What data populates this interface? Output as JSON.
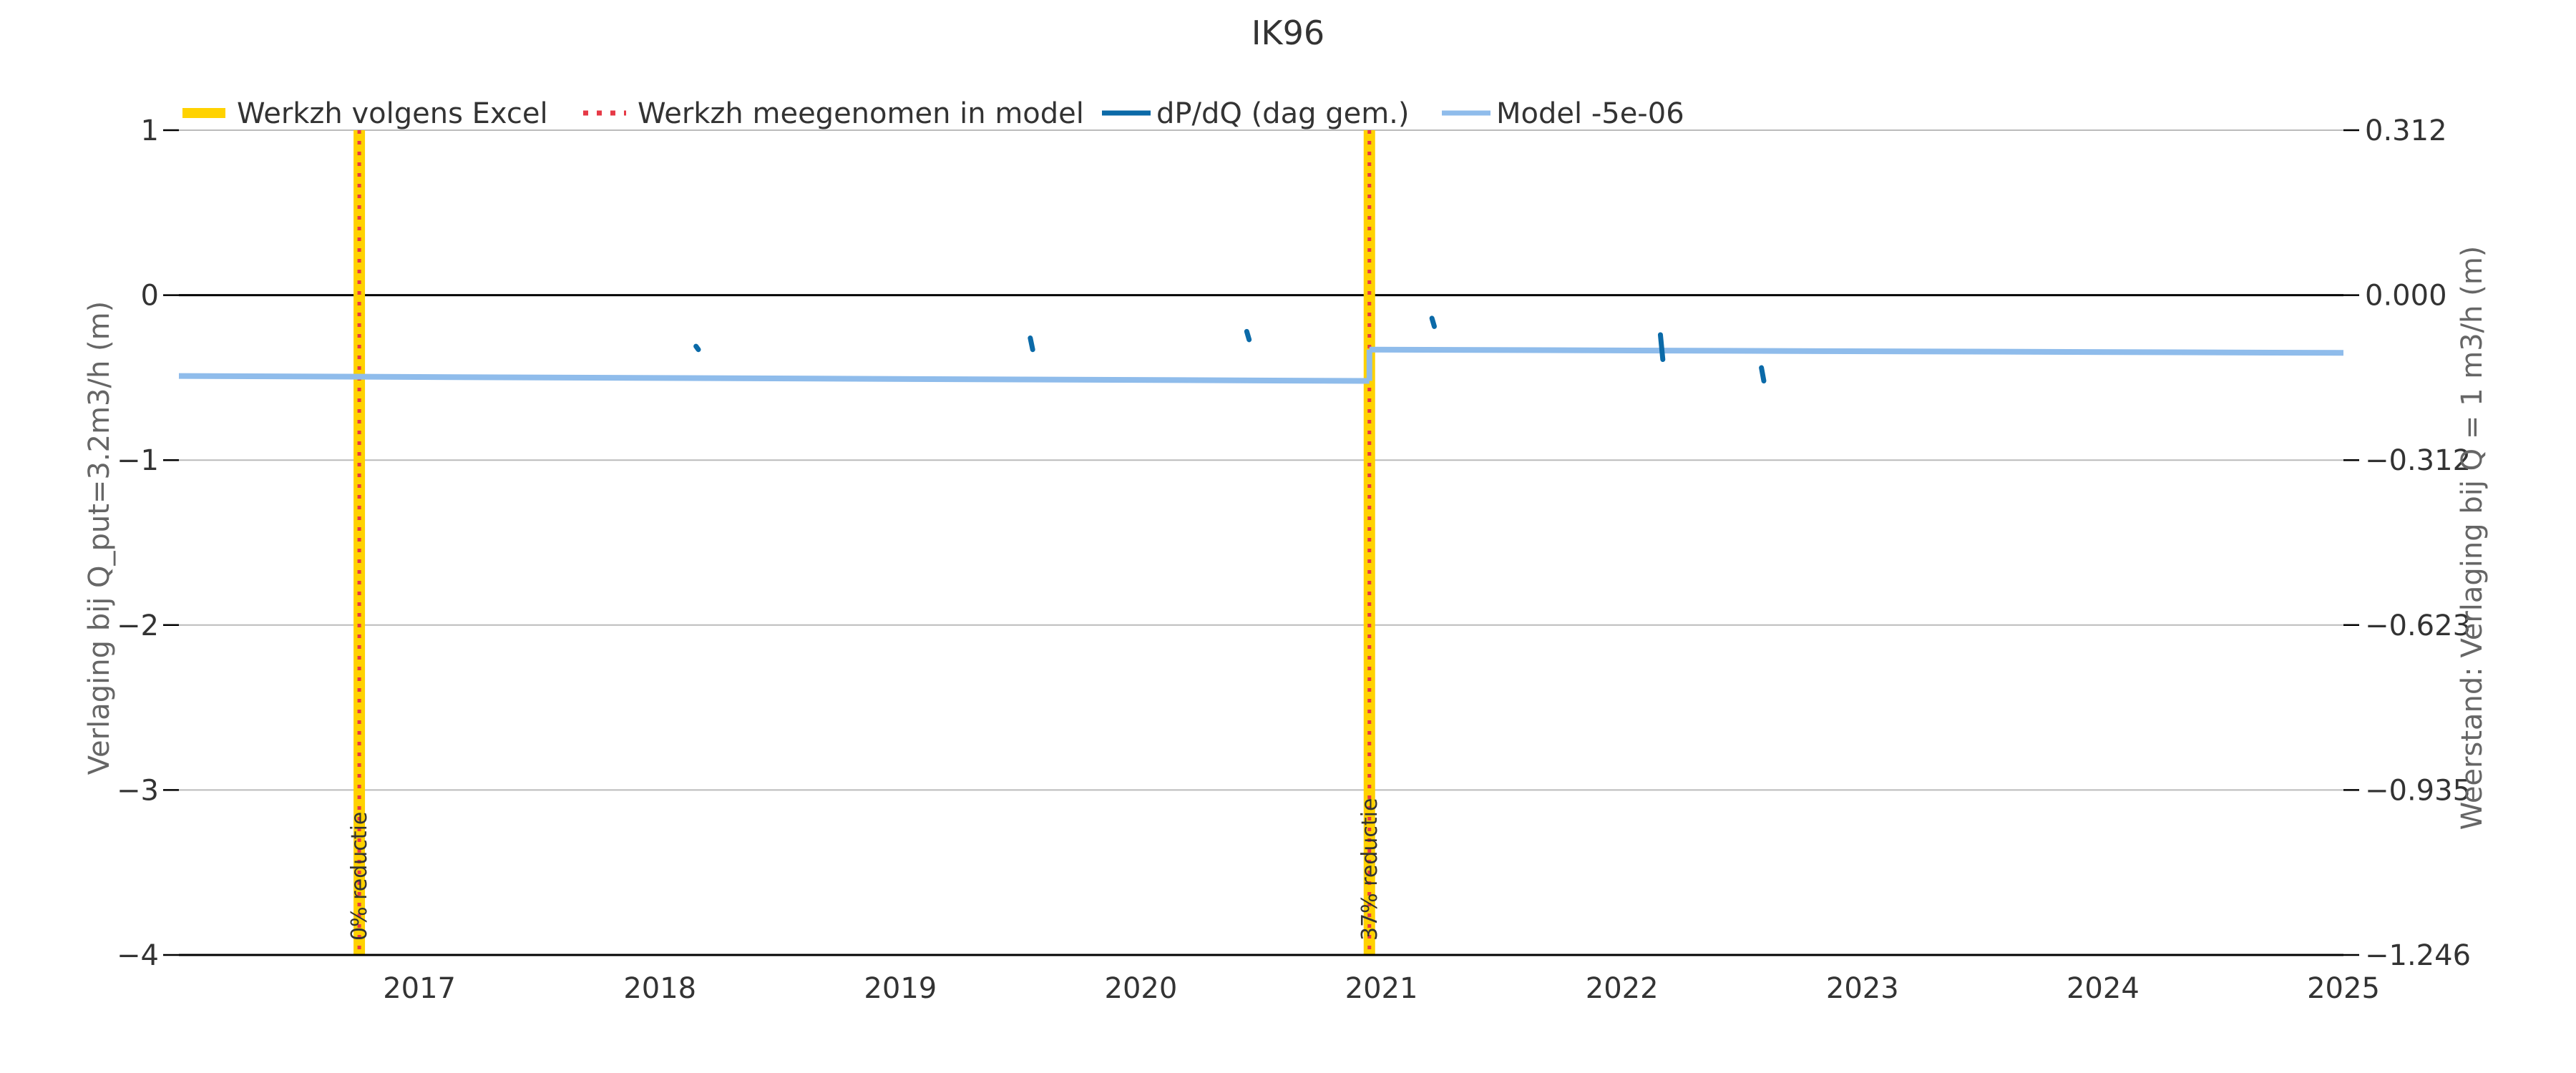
{
  "chart_data": {
    "type": "line",
    "title": "IK96",
    "ylabel_left": "Verlaging bij Q_put=3.2m3/h (m)",
    "ylabel_right": "Weerstand: Verlaging bij Q = 1 m3/h (m)",
    "xlim": [
      2016.0,
      2025.0
    ],
    "ylim": [
      -4,
      1
    ],
    "x_ticks": [
      2017,
      2018,
      2019,
      2020,
      2021,
      2022,
      2023,
      2024,
      2025
    ],
    "y_ticks_left": [
      1,
      0,
      -1,
      -2,
      -3,
      -4
    ],
    "y_tick_labels_left": [
      "1",
      "0",
      "−1",
      "−2",
      "−3",
      "−4"
    ],
    "y_ticks_right_at_left": [
      1,
      0,
      -1,
      -2,
      -3,
      -4
    ],
    "y_tick_labels_right": [
      "0.312",
      "0.000",
      "−0.312",
      "−0.623",
      "−0.935",
      "−1.246"
    ],
    "grid": true,
    "legend_position": "top",
    "legend": [
      {
        "label": "Werkzh volgens Excel",
        "style": "thick-solid",
        "color": "#FFD200"
      },
      {
        "label": "Werkzh meegenomen in model",
        "style": "dotted",
        "color": "#E63946"
      },
      {
        "label": "dP/dQ (dag gem.)",
        "style": "solid",
        "color": "#0B6AA8"
      },
      {
        "label": "Model -5e-06",
        "style": "solid",
        "color": "#8FBCEB"
      }
    ],
    "maintenance_events": [
      {
        "x": 2016.75,
        "label": "0% reductie"
      },
      {
        "x": 2020.95,
        "label": "37% reductie"
      }
    ],
    "model_series": {
      "name": "Model -5e-06",
      "segments": [
        [
          [
            2016.0,
            -0.49
          ],
          [
            2020.95,
            -0.52
          ]
        ],
        [
          [
            2020.95,
            -0.33
          ],
          [
            2025.0,
            -0.35
          ]
        ]
      ]
    },
    "measurement_series": {
      "name": "dP/dQ (dag gem.)",
      "segments": [
        [
          [
            2018.15,
            -0.31
          ],
          [
            2018.16,
            -0.33
          ]
        ],
        [
          [
            2019.54,
            -0.26
          ],
          [
            2019.55,
            -0.33
          ]
        ],
        [
          [
            2020.44,
            -0.22
          ],
          [
            2020.45,
            -0.27
          ]
        ],
        [
          [
            2021.21,
            -0.14
          ],
          [
            2021.22,
            -0.19
          ]
        ],
        [
          [
            2022.16,
            -0.24
          ],
          [
            2022.17,
            -0.39
          ]
        ],
        [
          [
            2022.58,
            -0.44
          ],
          [
            2022.59,
            -0.52
          ]
        ]
      ]
    },
    "colors": {
      "excel": "#FFD200",
      "model_dots": "#E63946",
      "measurement": "#0B6AA8",
      "model_line": "#8FBCEB",
      "grid": "#bbbbbb",
      "zero_line": "#000000"
    }
  }
}
